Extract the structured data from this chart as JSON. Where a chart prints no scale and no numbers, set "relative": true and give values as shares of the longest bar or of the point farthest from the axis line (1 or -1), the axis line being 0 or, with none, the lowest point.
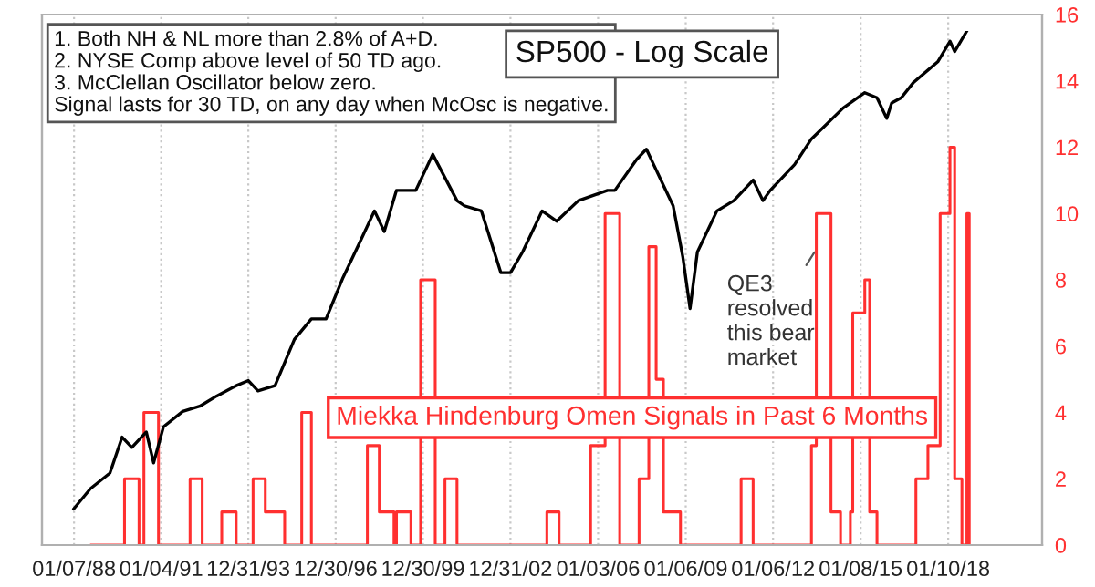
{
  "chart_data": [
    {
      "type": "step",
      "xlim": [
        "1986-12",
        "2021-04"
      ],
      "xticks": [
        {
          "value": "1988-01-07",
          "label": "01/07/88"
        },
        {
          "value": "1991-01-04",
          "label": "01/04/91"
        },
        {
          "value": "1993-12-31",
          "label": "12/31/93"
        },
        {
          "value": "1996-12-30",
          "label": "12/30/96"
        },
        {
          "value": "1999-12-30",
          "label": "12/30/99"
        },
        {
          "value": "2002-12-31",
          "label": "12/31/02"
        },
        {
          "value": "2006-01-03",
          "label": "01/03/06"
        },
        {
          "value": "2009-01-06",
          "label": "01/06/09"
        },
        {
          "value": "2012-01-06",
          "label": "01/06/12"
        },
        {
          "value": "2015-01-08",
          "label": "01/08/15"
        },
        {
          "value": "2018-01-10",
          "label": "01/10/18"
        }
      ],
      "y2lim": [
        0,
        16
      ],
      "y2ticks": [
        0,
        2,
        4,
        6,
        8,
        10,
        12,
        14,
        16
      ],
      "grid": "x",
      "series": [
        {
          "name": "Miekka Hindenburg Omen Signals in Past 6 Months",
          "color": "#ff3030",
          "axis": "y2",
          "x": [
            "1988-08",
            "1989-10",
            "1990-04",
            "1990-06",
            "1990-12",
            "1992-01",
            "1992-06",
            "1993-02",
            "1993-08",
            "1994-03",
            "1994-08",
            "1995-04",
            "1995-11",
            "1996-03",
            "1998-02",
            "1998-07",
            "1999-01",
            "1999-02",
            "1999-08",
            "1999-12",
            "2000-06",
            "2000-10",
            "2001-03",
            "2004-04",
            "2004-09",
            "2005-10",
            "2006-04",
            "2006-10",
            "2007-06",
            "2007-10",
            "2008-01",
            "2008-04",
            "2008-11",
            "2010-12",
            "2011-05",
            "2013-05",
            "2013-07",
            "2014-01",
            "2014-05",
            "2014-09",
            "2014-10",
            "2015-03",
            "2015-05",
            "2015-08",
            "2016-12",
            "2017-05",
            "2017-10",
            "2018-02",
            "2018-04",
            "2018-07",
            "2018-09",
            "2018-10"
          ],
          "values": [
            0,
            2,
            0,
            4,
            0,
            2,
            0,
            1,
            0,
            2,
            1,
            0,
            4,
            0,
            3,
            1,
            0,
            1,
            0,
            8,
            0,
            2,
            0,
            1,
            0,
            3,
            10,
            0,
            2,
            9,
            5,
            1,
            0,
            2,
            0,
            3,
            10,
            1,
            0,
            1,
            7,
            8,
            1,
            0,
            2,
            3,
            10,
            12,
            2,
            0,
            10,
            0
          ]
        }
      ],
      "annotations": [
        "1. Both NH & NL more than 2.8% of A+D.\n2. NYSE Comp above level of 50 TD ago.\n3. McClellan Oscillator below zero.\nSignal lasts for 30 TD, on any day when McOsc is negative.",
        "QE3\nresolved\nthis bear\nmarket"
      ]
    },
    {
      "type": "line",
      "relative": true,
      "title": "SP500 - Log Scale",
      "xlim": [
        "1986-12",
        "2021-04"
      ],
      "series": [
        {
          "color": "#000000",
          "x": [
            "1988-01",
            "1988-08",
            "1989-04",
            "1989-09",
            "1990-01",
            "1990-07",
            "1990-10",
            "1991-02",
            "1991-10",
            "1992-05",
            "1992-12",
            "1993-08",
            "1994-01",
            "1994-05",
            "1994-12",
            "1995-08",
            "1996-03",
            "1996-09",
            "1997-04",
            "1997-11",
            "1998-05",
            "1998-09",
            "1999-02",
            "1999-10",
            "2000-05",
            "2001-03",
            "2001-06",
            "2002-01",
            "2002-09",
            "2003-01",
            "2003-06",
            "2004-02",
            "2004-08",
            "2005-05",
            "2006-05",
            "2006-08",
            "2007-05",
            "2007-09",
            "2007-12",
            "2008-04",
            "2008-08",
            "2008-12",
            "2009-03",
            "2009-06",
            "2010-02",
            "2010-09",
            "2011-05",
            "2011-09",
            "2011-12",
            "2012-10",
            "2013-05",
            "2014-06",
            "2015-03",
            "2015-08",
            "2015-12",
            "2016-02",
            "2016-06",
            "2016-11",
            "2017-09",
            "2018-02",
            "2018-04",
            "2018-09"
          ],
          "values": [
            0.07,
            0.11,
            0.14,
            0.21,
            0.19,
            0.22,
            0.16,
            0.23,
            0.26,
            0.27,
            0.29,
            0.31,
            0.32,
            0.3,
            0.31,
            0.4,
            0.44,
            0.44,
            0.52,
            0.59,
            0.65,
            0.61,
            0.69,
            0.69,
            0.76,
            0.67,
            0.66,
            0.65,
            0.53,
            0.53,
            0.57,
            0.65,
            0.63,
            0.67,
            0.69,
            0.69,
            0.75,
            0.77,
            0.74,
            0.7,
            0.66,
            0.56,
            0.46,
            0.57,
            0.65,
            0.67,
            0.71,
            0.67,
            0.69,
            0.74,
            0.79,
            0.85,
            0.88,
            0.87,
            0.83,
            0.86,
            0.87,
            0.9,
            0.94,
            0.98,
            0.96,
            1.0
          ]
        }
      ]
    }
  ]
}
